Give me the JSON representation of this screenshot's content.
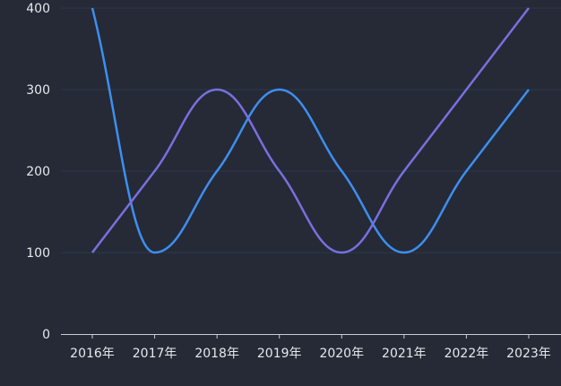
{
  "chart_data": {
    "type": "line",
    "smooth": true,
    "categories": [
      "2016年",
      "2017年",
      "2018年",
      "2019年",
      "2020年",
      "2021年",
      "2022年",
      "2023年"
    ],
    "ylim": [
      0,
      400
    ],
    "yticks": [
      "0",
      "100",
      "200",
      "300",
      "400"
    ],
    "grid": true,
    "series": [
      {
        "color": "#3d8ff0",
        "values": [
          400,
          100,
          200,
          300,
          200,
          100,
          200,
          300
        ]
      },
      {
        "color": "#7a6fe0",
        "values": [
          100,
          200,
          300,
          200,
          100,
          200,
          300,
          400
        ]
      }
    ]
  },
  "colors": {
    "background": "#252a36",
    "gridline": "#30364a",
    "axis": "#c8ccd6"
  }
}
